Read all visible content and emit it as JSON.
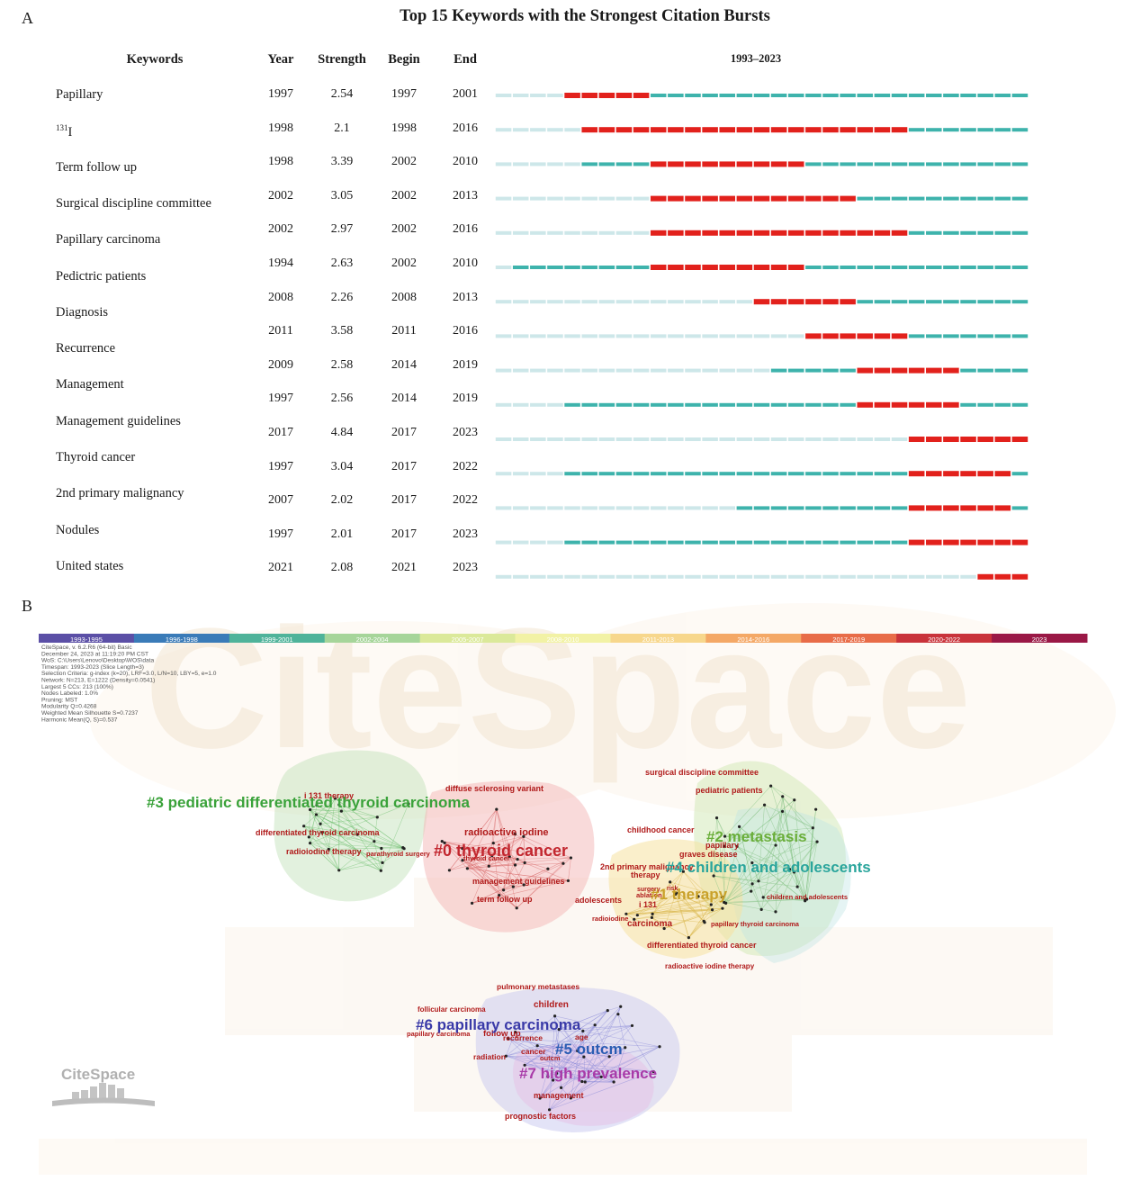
{
  "panel_a_label": "A",
  "panel_b_label": "B",
  "chart_data": [
    {
      "type": "table",
      "title": "Top 15 Keywords with the Strongest Citation Bursts",
      "columns": [
        "Keywords",
        "Year",
        "Strength",
        "Begin",
        "End",
        "1993–2023"
      ],
      "range_start": 1993,
      "range_end": 2023,
      "colors": {
        "burst": "#e2211c",
        "active": "#3eb3ac",
        "inactive": "#cde7e9"
      },
      "rows": [
        {
          "keyword": "Papillary",
          "year": 1997,
          "strength": 2.54,
          "begin": 1997,
          "end": 2001
        },
        {
          "keyword": "131I",
          "year": 1998,
          "strength": 2.1,
          "begin": 1998,
          "end": 2016
        },
        {
          "keyword": "Term follow up",
          "year": 1998,
          "strength": 3.39,
          "begin": 2002,
          "end": 2010
        },
        {
          "keyword": "Surgical discipline committee",
          "year": 2002,
          "strength": 3.05,
          "begin": 2002,
          "end": 2013
        },
        {
          "keyword": "Papillary carcinoma",
          "year": 2002,
          "strength": 2.97,
          "begin": 2002,
          "end": 2016
        },
        {
          "keyword": "Pedictric patients",
          "year": 1994,
          "strength": 2.63,
          "begin": 2002,
          "end": 2010
        },
        {
          "keyword": "Diagnosis",
          "year": 2008,
          "strength": 2.26,
          "begin": 2008,
          "end": 2013
        },
        {
          "keyword": "Recurrence",
          "year": 2011,
          "strength": 3.58,
          "begin": 2011,
          "end": 2016
        },
        {
          "keyword": "Management",
          "year": 2009,
          "strength": 2.58,
          "begin": 2014,
          "end": 2019
        },
        {
          "keyword": "Management guidelines",
          "year": 1997,
          "strength": 2.56,
          "begin": 2014,
          "end": 2019
        },
        {
          "keyword": "Thyroid cancer",
          "year": 2017,
          "strength": 4.84,
          "begin": 2017,
          "end": 2023
        },
        {
          "keyword": "2nd primary malignancy",
          "year": 1997,
          "strength": 3.04,
          "begin": 2017,
          "end": 2022
        },
        {
          "keyword": "Nodules",
          "year": 2007,
          "strength": 2.02,
          "begin": 2017,
          "end": 2022
        },
        {
          "keyword": "United states",
          "year": 1997,
          "strength": 2.01,
          "begin": 2017,
          "end": 2023
        },
        {
          "keyword": "",
          "year": 2021,
          "strength": 2.08,
          "begin": 2021,
          "end": 2023
        }
      ]
    },
    {
      "type": "network",
      "legend": [
        {
          "label": "1993-1995",
          "color": "#5b4fa6"
        },
        {
          "label": "1996-1998",
          "color": "#3a7bb8"
        },
        {
          "label": "1999-2001",
          "color": "#4fb39a"
        },
        {
          "label": "2002-2004",
          "color": "#a6d59a"
        },
        {
          "label": "2005-2007",
          "color": "#dbe99a"
        },
        {
          "label": "2008-2010",
          "color": "#f2f2a5"
        },
        {
          "label": "2011-2013",
          "color": "#f7d78c"
        },
        {
          "label": "2014-2016",
          "color": "#f4a866"
        },
        {
          "label": "2017-2019",
          "color": "#e86c48"
        },
        {
          "label": "2020-2022",
          "color": "#c9333b"
        },
        {
          "label": "2023",
          "color": "#9a1846"
        }
      ],
      "info_lines": [
        "CiteSpace, v. 6.2.R6 (64-bit) Basic",
        "December 24, 2023 at 11:19:20 PM CST",
        "WoS: C:\\Users\\Lenovo\\Desktop\\WOS\\data",
        "Timespan: 1993-2023 (Slice Length=3)",
        "Selection Criteria: g-index (k=20), LRF=3.0, L/N=10, LBY=5, e=1.0",
        "Network: N=213, E=1222 (Density=0.0541)",
        "Largest 5 CCs: 213 (100%)",
        "Nodes Labeled: 1.0%",
        "Pruning: MST",
        "Modularity Q=0.4268",
        "Weighted Mean Silhouette S=0.7237",
        "Harmonic Mean(Q, S)=0.537"
      ],
      "watermark": "CiteSpace",
      "logo_text": "CiteSpace",
      "clusters": [
        {
          "id": "#0",
          "label": "#0 thyroid cancer",
          "color": "#c2262e"
        },
        {
          "id": "#1",
          "label": "#1 therapy",
          "color": "#c9a12a"
        },
        {
          "id": "#2",
          "label": "#2 metastasis",
          "color": "#6aae3a"
        },
        {
          "id": "#3",
          "label": "#3 pediatric differentiated thyroid carcinoma",
          "color": "#3aa23a"
        },
        {
          "id": "#4",
          "label": "#4 children and adolescents",
          "color": "#2aa59c"
        },
        {
          "id": "#5",
          "label": "#5 outcm",
          "color": "#2a5cb3"
        },
        {
          "id": "#6",
          "label": "#6 papillary carcinoma",
          "color": "#3a3aa8"
        },
        {
          "id": "#7",
          "label": "#7 high prevalence",
          "color": "#a83aa8"
        }
      ],
      "keyword_labels": [
        "i 131 therapy",
        "differentiated thyroid carcinoma",
        "radioiodine therapy",
        "parathyroid surgery",
        "diffuse sclerosing variant",
        "radioactive iodine",
        "thyroid cancer",
        "management guidelines",
        "term follow up",
        "surgical discipline committee",
        "pediatric patients",
        "childhood cancer",
        "papillary",
        "graves disease",
        "2nd primary malignancy",
        "therapy",
        "adolescents",
        "ablation",
        "surgery",
        "risk",
        "i 131",
        "radioiodine",
        "carcinoma",
        "children and adolescents",
        "papillary thyroid carcinoma",
        "differentiated thyroid cancer",
        "radioactive iodine therapy",
        "pulmonary metastases",
        "follicular carcinoma",
        "children",
        "papillary carcinoma",
        "follow up",
        "recurrence",
        "age",
        "radiation",
        "cancer",
        "outcm",
        "management",
        "prognostic factors"
      ]
    }
  ]
}
